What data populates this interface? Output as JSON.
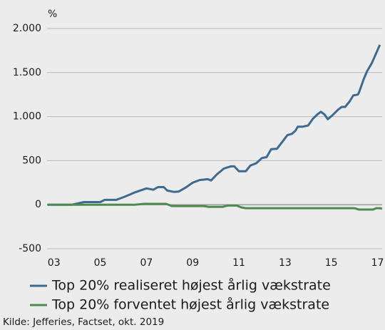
{
  "chart_data": {
    "type": "line",
    "y_unit": "%",
    "source": "Kilde: Jefferies, Factset, okt. 2019",
    "xlim": [
      2002.7,
      2017.2
    ],
    "xticks": [
      {
        "value": 2003,
        "label": "03"
      },
      {
        "value": 2005,
        "label": "05"
      },
      {
        "value": 2007,
        "label": "07"
      },
      {
        "value": 2009,
        "label": "09"
      },
      {
        "value": 2011,
        "label": "11"
      },
      {
        "value": 2013,
        "label": "13"
      },
      {
        "value": 2015,
        "label": "15"
      },
      {
        "value": 2017,
        "label": "17"
      }
    ],
    "ylim": [
      -500,
      2000
    ],
    "yticks": [
      {
        "value": -500,
        "label": "-500"
      },
      0,
      500,
      {
        "value": 1000,
        "label": "1.000"
      },
      {
        "value": 1500,
        "label": "1.500"
      },
      {
        "value": 2000,
        "label": "2.000"
      }
    ],
    "grid": true,
    "series": [
      {
        "name": "Top 20% realiseret højest årlig vækstrate",
        "color": "#3d6a90",
        "x": [
          2002.72,
          2003.77,
          2004.3,
          2005.0,
          2005.2,
          2005.7,
          2006.1,
          2006.5,
          2007.0,
          2007.3,
          2007.5,
          2007.75,
          2007.9,
          2008.2,
          2008.4,
          2008.7,
          2009.0,
          2009.3,
          2009.65,
          2009.8,
          2010.05,
          2010.35,
          2010.65,
          2010.8,
          2011.0,
          2011.3,
          2011.5,
          2011.75,
          2012.0,
          2012.2,
          2012.4,
          2012.65,
          2012.9,
          2013.1,
          2013.3,
          2013.45,
          2013.55,
          2013.75,
          2014.0,
          2014.2,
          2014.4,
          2014.55,
          2014.7,
          2014.85,
          2015.05,
          2015.3,
          2015.45,
          2015.6,
          2015.8,
          2015.95,
          2016.15,
          2016.2,
          2016.4,
          2016.55,
          2016.75,
          2016.9,
          2017.1
        ],
        "values": [
          0,
          0,
          30,
          30,
          55,
          55,
          95,
          140,
          185,
          170,
          200,
          200,
          160,
          145,
          150,
          195,
          250,
          280,
          290,
          275,
          345,
          410,
          435,
          435,
          380,
          380,
          445,
          470,
          530,
          540,
          630,
          635,
          720,
          790,
          805,
          840,
          885,
          885,
          900,
          975,
          1025,
          1055,
          1025,
          970,
          1015,
          1080,
          1110,
          1110,
          1175,
          1240,
          1250,
          1275,
          1425,
          1515,
          1605,
          1695,
          1815
        ]
      },
      {
        "name": "Top 20% forventet højest årlig vækstrate",
        "color": "#4e8a4e",
        "x": [
          2002.72,
          2006.5,
          2006.9,
          2007.85,
          2008.1,
          2009.5,
          2009.7,
          2010.3,
          2010.5,
          2010.9,
          2011.1,
          2011.3,
          2016.0,
          2016.2,
          2016.8,
          2016.95,
          2017.1,
          2017.2
        ],
        "values": [
          0,
          0,
          10,
          10,
          -15,
          -15,
          -25,
          -25,
          -10,
          -10,
          -30,
          -40,
          -40,
          -55,
          -55,
          -40,
          -40,
          -45
        ]
      }
    ]
  }
}
